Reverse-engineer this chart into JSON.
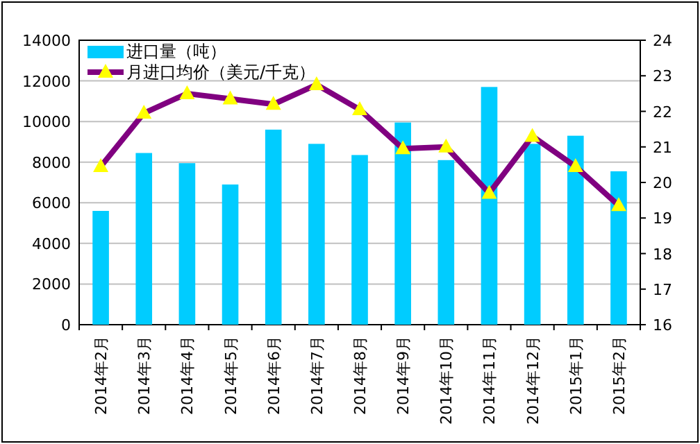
{
  "chart_data": {
    "type": "bar",
    "categories": [
      "2014年2月",
      "2014年3月",
      "2014年4月",
      "2014年5月",
      "2014年6月",
      "2014年7月",
      "2014年8月",
      "2014年9月",
      "2014年10月",
      "2014年11月",
      "2014年12月",
      "2015年1月",
      "2015年2月"
    ],
    "series": [
      {
        "name": "进口量（吨）",
        "color": "#00ccff",
        "values": [
          5600,
          8450,
          7950,
          6900,
          9600,
          8900,
          8350,
          9950,
          8100,
          11700,
          8900,
          9300,
          7550
        ]
      },
      {
        "name": "月进口均价（美元/千克）",
        "type": "line",
        "axis": "y2",
        "color": "#800080",
        "marker": "triangle",
        "values": [
          20.45,
          21.95,
          22.5,
          22.35,
          22.2,
          22.75,
          22.05,
          20.95,
          21.0,
          19.7,
          21.3,
          20.45,
          19.35
        ]
      }
    ],
    "ylim": [
      0,
      14000
    ],
    "yticks": [
      0,
      2000,
      4000,
      6000,
      8000,
      10000,
      12000,
      14000
    ],
    "y2lim": [
      16,
      24
    ],
    "y2ticks": [
      16,
      17,
      18,
      19,
      20,
      21,
      22,
      23,
      24
    ],
    "grid": "y",
    "legend": "top left"
  }
}
